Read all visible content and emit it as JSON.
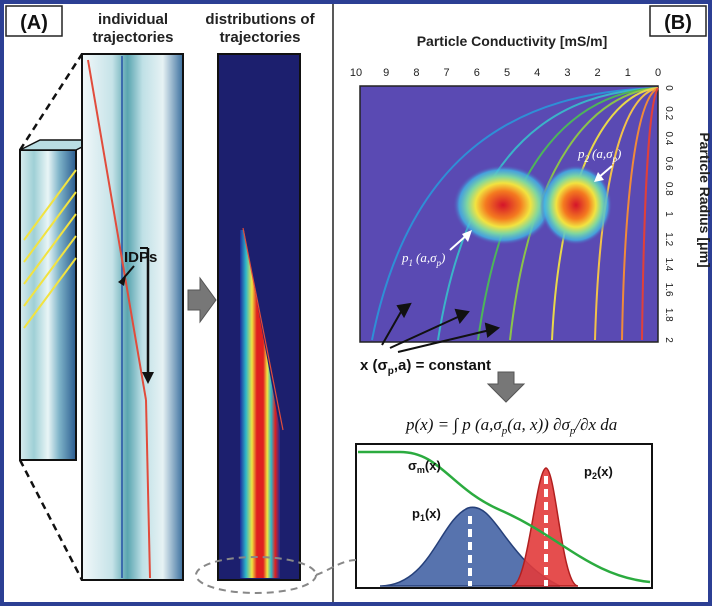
{
  "colors": {
    "border": "#2c3f94",
    "heatmap_bg": "#5a4ab3",
    "dark_panel": "#1c1f6e",
    "trajectory_red": "#e14c3c",
    "green_curve": "#2bab3f",
    "blue_dist": "#3a5aa0",
    "red_dist": "#e23b3b"
  },
  "panel_a": {
    "label": "(A)",
    "individual_title": [
      "individual",
      "trajectories"
    ],
    "distributions_title": [
      "distributions of",
      "trajectories"
    ],
    "idps_label": "IDPs"
  },
  "panel_b": {
    "label": "(B)",
    "x_axis_title": "Particle Conductivity [mS/m]",
    "y_axis_title": "Particle Radius [μm]",
    "x_ticks": [
      "10",
      "9",
      "8",
      "7",
      "6",
      "5",
      "4",
      "3",
      "2",
      "1",
      "0"
    ],
    "y_ticks": [
      "0",
      "0.2",
      "0.4",
      "0.6",
      "0.8",
      "1",
      "1.2",
      "1.4",
      "1.6",
      "1.8",
      "2"
    ],
    "blob1_label_main": "p",
    "blob1_label_sub": "1",
    "blob1_label_args": "(a,σ",
    "blob1_label_argsub": "p",
    "blob1_label_close": ")",
    "blob2_label_main": "p",
    "blob2_label_sub": "2",
    "blob2_label_args": "(a,σ",
    "blob2_label_argsub": "p",
    "blob2_label_close": ")",
    "constant_label": "x (σ",
    "constant_label_sub": "p",
    "constant_label_rest": ",a) = constant",
    "equation": "p(x) = ∫ p (a,σ",
    "equation_sub": "p",
    "equation_rest": "(a, x)) ∂σ",
    "equation_sub2": "p",
    "equation_tail": "/∂x da",
    "sigma_label": "σ",
    "sigma_sub": "m",
    "sigma_tail": "(x)",
    "p1x_label": "p",
    "p1x_sub": "1",
    "p1x_tail": "(x)",
    "p2x_label": "p",
    "p2x_sub": "2",
    "p2x_tail": "(x)"
  }
}
